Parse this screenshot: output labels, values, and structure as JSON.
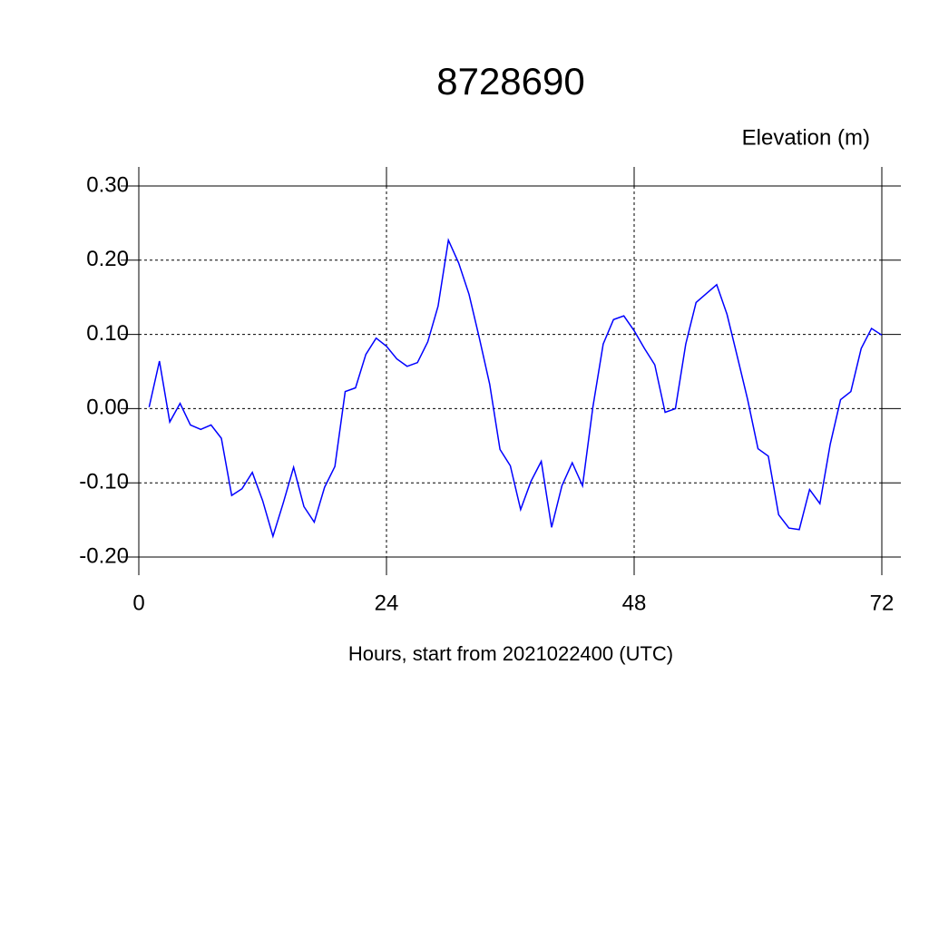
{
  "chart_data": {
    "type": "line",
    "title": "8728690",
    "value_label": "Elevation (m)",
    "x_label": "Hours, start from 2021022400 (UTC)",
    "x": [
      1,
      2,
      3,
      4,
      5,
      6,
      7,
      8,
      9,
      10,
      11,
      12,
      13,
      14,
      15,
      16,
      17,
      18,
      19,
      20,
      21,
      22,
      23,
      24,
      25,
      26,
      27,
      28,
      29,
      30,
      31,
      32,
      33,
      34,
      35,
      36,
      37,
      38,
      39,
      40,
      41,
      42,
      43,
      44,
      45,
      46,
      47,
      48,
      49,
      50,
      51,
      52,
      53,
      54,
      55,
      56,
      57,
      58,
      59,
      60,
      61,
      62,
      63,
      64,
      65,
      66,
      67,
      68,
      69,
      70,
      71,
      72
    ],
    "series": [
      {
        "color": "#0000ff",
        "values": [
          0.002,
          0.064,
          -0.018,
          0.007,
          -0.022,
          -0.028,
          -0.022,
          -0.04,
          -0.117,
          -0.108,
          -0.086,
          -0.124,
          -0.172,
          -0.127,
          -0.079,
          -0.132,
          -0.153,
          -0.106,
          -0.078,
          0.023,
          0.028,
          0.073,
          0.095,
          0.084,
          0.067,
          0.057,
          0.062,
          0.09,
          0.138,
          0.227,
          0.196,
          0.154,
          0.095,
          0.033,
          -0.055,
          -0.077,
          -0.136,
          -0.098,
          -0.071,
          -0.16,
          -0.104,
          -0.073,
          -0.104,
          0.002,
          0.087,
          0.12,
          0.125,
          0.105,
          0.081,
          0.059,
          -0.005,
          0.0,
          0.087,
          0.143,
          0.155,
          0.167,
          0.127,
          0.07,
          0.012,
          -0.054,
          -0.064,
          -0.143,
          -0.161,
          -0.163,
          -0.109,
          -0.128,
          -0.048,
          0.012,
          0.023,
          0.081,
          0.108,
          0.099
        ]
      }
    ],
    "xlim": [
      0,
      72
    ],
    "xticks": [
      0,
      24,
      48,
      72
    ],
    "ylim": [
      -0.2,
      0.3
    ],
    "yticks": [
      {
        "value": 0.3,
        "label": "0.30"
      },
      {
        "value": 0.2,
        "label": "0.20"
      },
      {
        "value": 0.1,
        "label": "0.10"
      },
      {
        "value": 0,
        "label": "0.00"
      },
      {
        "value": -0.1,
        "label": "-0.10"
      },
      {
        "value": -0.2,
        "label": "-0.20"
      }
    ],
    "grid": true
  }
}
